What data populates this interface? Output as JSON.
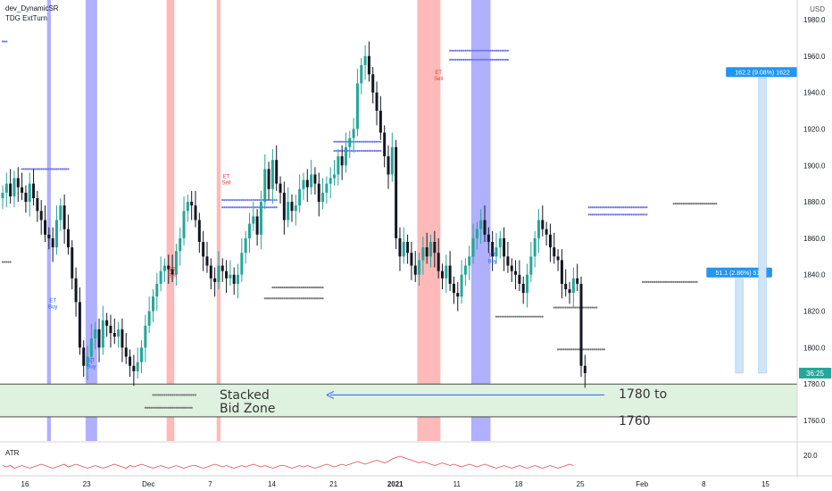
{
  "legend": {
    "line1": "dev_DynamicSR",
    "line2": "TDG ExtTurn"
  },
  "currency": "USD",
  "atr": {
    "label": "ATR",
    "value_label": "20.0"
  },
  "last_price_tag": {
    "text": "36:25",
    "value": 1786,
    "color": "#26a69a"
  },
  "colors": {
    "up": "#26a69a",
    "down": "#131722",
    "blue_band": "#7b7bff",
    "red_band": "#ff8a8a",
    "zone_fill": "#dff2df",
    "arrow": "#2962ff",
    "measure_fill": "#cfe5f7",
    "measure_tag": "#2196f3",
    "atr_line": "#e05050",
    "sr_blue": "#6e76e6",
    "sr_gray": "#777777"
  },
  "annotations": {
    "zone_text_line1": "Stacked",
    "zone_text_line2": "Bid Zone",
    "target_line1": "1780 to",
    "target_line2": "1760",
    "signals": [
      {
        "text1": "ET",
        "text2": "Buy",
        "x_index": 13,
        "price": 1825,
        "type": "buy"
      },
      {
        "text1": "ET",
        "text2": "Buy",
        "x_index": 23,
        "price": 1792,
        "type": "buy"
      },
      {
        "text1": "ET",
        "text2": "Sell",
        "x_index": 44,
        "price": 1842,
        "type": "sell"
      },
      {
        "text1": "ET",
        "text2": "Sell",
        "x_index": 58,
        "price": 1893,
        "type": "sell"
      },
      {
        "text1": "ET",
        "text2": "Sell",
        "x_index": 113,
        "price": 1950,
        "type": "sell"
      },
      {
        "text1": "ET",
        "text2": "Buy",
        "x_index": 127,
        "price": 1850,
        "type": "buy"
      }
    ],
    "measure_tags": [
      "51.1 (2.86%) 511",
      "162.2 (9.08%) 1622"
    ]
  },
  "chart_data": {
    "type": "candlestick",
    "title": "",
    "xlabel": "",
    "ylabel": "",
    "ylim": [
      1745,
      1990
    ],
    "y_ticks": [
      1760.0,
      1780.0,
      1800.0,
      1820.0,
      1840.0,
      1860.0,
      1880.0,
      1900.0,
      1920.0,
      1940.0,
      1960.0,
      1980.0
    ],
    "x_ticks": [
      {
        "label": "16",
        "index": 0
      },
      {
        "label": "23",
        "index": 16
      },
      {
        "label": "Dec",
        "index": 32
      },
      {
        "label": "7",
        "index": 48
      },
      {
        "label": "14",
        "index": 64
      },
      {
        "label": "21",
        "index": 80
      },
      {
        "label": "2021",
        "index": 96,
        "bold": true
      },
      {
        "label": "11",
        "index": 112
      },
      {
        "label": "18",
        "index": 128
      },
      {
        "label": "25",
        "index": 144
      },
      {
        "label": "Feb",
        "index": 160
      },
      {
        "label": "8",
        "index": 176
      },
      {
        "label": "15",
        "index": 192
      }
    ],
    "candles_close": [
      1885,
      1890,
      1883,
      1893,
      1888,
      1885,
      1880,
      1890,
      1882,
      1875,
      1870,
      1862,
      1860,
      1855,
      1870,
      1878,
      1865,
      1855,
      1838,
      1825,
      1800,
      1790,
      1795,
      1805,
      1810,
      1800,
      1815,
      1812,
      1808,
      1806,
      1810,
      1800,
      1795,
      1790,
      1787,
      1792,
      1800,
      1812,
      1820,
      1828,
      1835,
      1842,
      1845,
      1843,
      1840,
      1853,
      1860,
      1875,
      1880,
      1878,
      1870,
      1858,
      1850,
      1845,
      1838,
      1836,
      1845,
      1842,
      1838,
      1840,
      1835,
      1840,
      1852,
      1860,
      1868,
      1872,
      1862,
      1880,
      1898,
      1887,
      1903,
      1890,
      1885,
      1870,
      1880,
      1875,
      1878,
      1887,
      1892,
      1888,
      1895,
      1890,
      1880,
      1885,
      1890,
      1893,
      1895,
      1905,
      1900,
      1910,
      1915,
      1920,
      1945,
      1955,
      1960,
      1950,
      1940,
      1930,
      1918,
      1905,
      1895,
      1910,
      1860,
      1850,
      1858,
      1852,
      1845,
      1840,
      1848,
      1855,
      1850,
      1858,
      1852,
      1842,
      1838,
      1845,
      1835,
      1830,
      1828,
      1840,
      1845,
      1850,
      1860,
      1865,
      1870,
      1862,
      1858,
      1850,
      1855,
      1860,
      1850,
      1845,
      1842,
      1840,
      1835,
      1830,
      1840,
      1850,
      1860,
      1870,
      1865,
      1862,
      1855,
      1850,
      1848,
      1835,
      1832,
      1830,
      1838,
      1835,
      1790,
      1786
    ],
    "bands": [
      {
        "color": "blue",
        "x_start": 11.5,
        "x_end": 12.5
      },
      {
        "color": "blue",
        "x_start": 21.5,
        "x_end": 24.5
      },
      {
        "color": "red",
        "x_start": 42.5,
        "x_end": 44.5
      },
      {
        "color": "red",
        "x_start": 55.5,
        "x_end": 56.5
      },
      {
        "color": "red",
        "x_start": 107.5,
        "x_end": 113.5
      },
      {
        "color": "blue",
        "x_start": 121.5,
        "x_end": 126.5
      }
    ],
    "zone": {
      "top": 1780,
      "bottom": 1762
    },
    "sr_dots": [
      {
        "x0": 5,
        "x1": 17,
        "price": 1898,
        "color": "blue"
      },
      {
        "x0": 57,
        "x1": 71,
        "price": 1881,
        "color": "blue"
      },
      {
        "x0": 57,
        "x1": 71,
        "price": 1877,
        "color": "blue"
      },
      {
        "x0": 86,
        "x1": 98,
        "price": 1913,
        "color": "blue"
      },
      {
        "x0": 86,
        "x1": 98,
        "price": 1908,
        "color": "blue"
      },
      {
        "x0": 116,
        "x1": 131,
        "price": 1963,
        "color": "blue"
      },
      {
        "x0": 116,
        "x1": 131,
        "price": 1958,
        "color": "blue"
      },
      {
        "x0": 152,
        "x1": 167,
        "price": 1877,
        "color": "blue"
      },
      {
        "x0": 152,
        "x1": 167,
        "price": 1873,
        "color": "blue"
      },
      {
        "x0": 174,
        "x1": 185,
        "price": 1879,
        "color": "gray"
      },
      {
        "x0": 70,
        "x1": 83,
        "price": 1833,
        "color": "gray"
      },
      {
        "x0": 68,
        "x1": 83,
        "price": 1827,
        "color": "gray"
      },
      {
        "x0": 39,
        "x1": 50,
        "price": 1774,
        "color": "gray"
      },
      {
        "x0": 37,
        "x1": 49,
        "price": 1767,
        "color": "gray"
      },
      {
        "x0": 128,
        "x1": 140,
        "price": 1817,
        "color": "gray"
      },
      {
        "x0": 143,
        "x1": 154,
        "price": 1822,
        "color": "gray"
      },
      {
        "x0": 144,
        "x1": 156,
        "price": 1799,
        "color": "gray"
      },
      {
        "x0": 166,
        "x1": 180,
        "price": 1836,
        "color": "gray"
      },
      {
        "x0": 0,
        "x1": 2,
        "price": 1847,
        "color": "gray"
      },
      {
        "x0": 0,
        "x1": 1,
        "price": 1968,
        "color": "blue"
      }
    ],
    "measures": [
      {
        "x0": 190,
        "x1": 192,
        "low": 1786,
        "high": 1838,
        "tag": "51.1 (2.86%) 511"
      },
      {
        "x0": 196,
        "x1": 198,
        "low": 1786,
        "high": 1948,
        "tag": "162.2 (9.08%) 1622"
      }
    ],
    "arrow": {
      "from_x_index": 156,
      "to_x_index": 84,
      "price": 1774
    },
    "atr_series": [
      22,
      21,
      22,
      20,
      21,
      22,
      21,
      20,
      21,
      22,
      23,
      22,
      21,
      20,
      21,
      22,
      23,
      21,
      22,
      23,
      22,
      21,
      20,
      21,
      22,
      21,
      20,
      21,
      22,
      23,
      22,
      21,
      20,
      22,
      21,
      22,
      23,
      22,
      21,
      20,
      21,
      22,
      21,
      20,
      21,
      22,
      21,
      20,
      21,
      22,
      22,
      21,
      20,
      21,
      22,
      23,
      22,
      21,
      22,
      21,
      20,
      21,
      22,
      21,
      22,
      23,
      22,
      21,
      22,
      21,
      20,
      21,
      22,
      22,
      21,
      20,
      21,
      22,
      21,
      22,
      21,
      20,
      21,
      22,
      23,
      22,
      21,
      22,
      23,
      22,
      23,
      24,
      25,
      24,
      23,
      24,
      25,
      26,
      25,
      24,
      25,
      27,
      28,
      29,
      28,
      27,
      26,
      25,
      24,
      25,
      24,
      23,
      22,
      23,
      24,
      23,
      22,
      23,
      22,
      21,
      22,
      23,
      22,
      21,
      22,
      23,
      22,
      21,
      20,
      21,
      22,
      21,
      20,
      21,
      22,
      21,
      20,
      21,
      22,
      21,
      20,
      21,
      22,
      21,
      20,
      21,
      22,
      23,
      22
    ]
  }
}
